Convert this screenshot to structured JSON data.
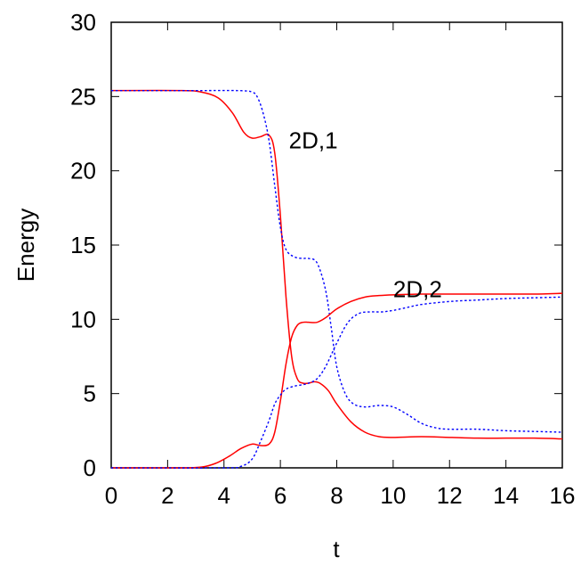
{
  "chart_data": {
    "type": "line",
    "title": "",
    "xlabel": "t",
    "ylabel": "Energy",
    "xlim": [
      0,
      16
    ],
    "ylim": [
      0,
      30
    ],
    "xticks": [
      "0",
      "2",
      "4",
      "6",
      "8",
      "10",
      "12",
      "14",
      "16"
    ],
    "yticks": [
      "0",
      "5",
      "10",
      "15",
      "20",
      "25",
      "30"
    ],
    "grid": false,
    "legend": "none",
    "annotations": [
      {
        "text": "2D,1",
        "x": 6.3,
        "y": 21.5
      },
      {
        "text": "2D,2",
        "x": 10.0,
        "y": 11.5
      }
    ],
    "series": [
      {
        "color": "#ff0000",
        "dash": "solid",
        "x": [
          0,
          2.5,
          3.2,
          3.8,
          4.3,
          4.7,
          5.0,
          5.3,
          5.6,
          5.8,
          6.0,
          6.2,
          6.4,
          6.6,
          6.8,
          7.0,
          7.2,
          7.4,
          7.7,
          8.0,
          8.5,
          9.0,
          9.5,
          10,
          11,
          12,
          13,
          14,
          15,
          16
        ],
        "y": [
          25.4,
          25.4,
          25.3,
          24.9,
          23.9,
          22.6,
          22.2,
          22.3,
          22.4,
          21.2,
          17.0,
          11.5,
          7.5,
          6.0,
          5.7,
          5.7,
          5.8,
          5.7,
          5.2,
          4.3,
          3.1,
          2.4,
          2.1,
          2.05,
          2.1,
          2.05,
          2.0,
          2.0,
          2.0,
          1.95
        ]
      },
      {
        "color": "#0000ff",
        "dash": "dotted",
        "x": [
          0,
          3,
          4.5,
          5.0,
          5.2,
          5.4,
          5.6,
          5.8,
          6.0,
          6.2,
          6.5,
          6.8,
          7.0,
          7.3,
          7.6,
          7.8,
          8.0,
          8.3,
          8.6,
          9.0,
          9.5,
          10,
          10.5,
          11,
          11.5,
          12,
          13,
          14,
          15,
          16
        ],
        "y": [
          25.4,
          25.4,
          25.4,
          25.3,
          24.9,
          23.8,
          22.0,
          19.0,
          16.2,
          14.7,
          14.2,
          14.1,
          14.1,
          13.8,
          12.0,
          9.5,
          6.8,
          5.0,
          4.3,
          4.1,
          4.2,
          4.1,
          3.6,
          3.0,
          2.7,
          2.6,
          2.6,
          2.5,
          2.45,
          2.4
        ]
      },
      {
        "color": "#ff0000",
        "dash": "solid",
        "x": [
          0,
          2.5,
          3.2,
          3.7,
          4.2,
          4.6,
          5.0,
          5.3,
          5.6,
          5.8,
          6.0,
          6.2,
          6.4,
          6.6,
          6.8,
          7.0,
          7.3,
          7.6,
          8.0,
          8.5,
          9.0,
          9.5,
          10,
          11,
          12,
          13,
          14,
          15,
          16
        ],
        "y": [
          0,
          0,
          0.05,
          0.3,
          0.8,
          1.3,
          1.6,
          1.5,
          1.6,
          2.4,
          4.5,
          7.0,
          8.8,
          9.6,
          9.8,
          9.8,
          9.8,
          10.1,
          10.7,
          11.2,
          11.5,
          11.6,
          11.65,
          11.7,
          11.7,
          11.7,
          11.7,
          11.7,
          11.75
        ]
      },
      {
        "color": "#0000ff",
        "dash": "dotted",
        "x": [
          0,
          4.0,
          4.6,
          5.0,
          5.3,
          5.6,
          5.8,
          6.0,
          6.2,
          6.5,
          6.8,
          7.0,
          7.3,
          7.6,
          8.0,
          8.4,
          8.8,
          9.2,
          9.6,
          10,
          10.5,
          11,
          12,
          13,
          14,
          15,
          16
        ],
        "y": [
          0,
          0,
          0.1,
          0.6,
          1.8,
          3.2,
          4.3,
          4.9,
          5.3,
          5.5,
          5.6,
          5.7,
          6.0,
          6.8,
          8.4,
          9.8,
          10.4,
          10.5,
          10.5,
          10.6,
          10.8,
          11.0,
          11.2,
          11.3,
          11.4,
          11.45,
          11.5
        ]
      }
    ]
  }
}
